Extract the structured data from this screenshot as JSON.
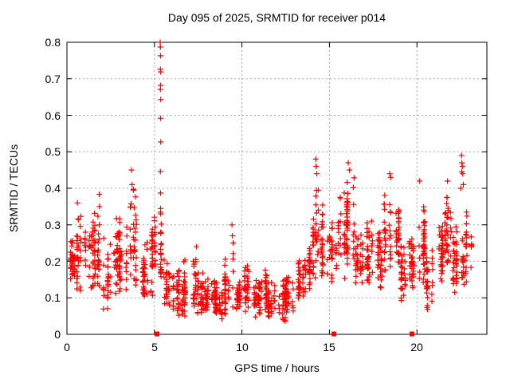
{
  "page": {
    "background": "#ffffff"
  },
  "chart_data": {
    "type": "scatter",
    "title": "Day 095 of 2025, SRMTID for receiver p014",
    "xlabel": "GPS time / hours",
    "ylabel": "SRMTID / TECUs",
    "xlim": [
      0,
      24
    ],
    "ylim": [
      0,
      0.8
    ],
    "x_ticks": [
      0,
      5,
      10,
      15,
      20
    ],
    "x_tick_labels": [
      "0",
      "5",
      "10",
      "15",
      "20"
    ],
    "y_ticks": [
      0,
      0.1,
      0.2,
      0.3,
      0.4,
      0.5,
      0.6,
      0.7,
      0.8
    ],
    "y_tick_labels": [
      "0",
      "0.1",
      "0.2",
      "0.3",
      "0.4",
      "0.5",
      "0.6",
      "0.7",
      "0.8"
    ],
    "grid": "dotted",
    "legend": "none",
    "marker": "plus",
    "marker_color": "#ff0000",
    "grid_color": "#a8a8a8",
    "border_color": "#000000",
    "seed": 42,
    "series_profile": {
      "description": "Dense burst scatter; each segment = [t_start_h, t_end_h, n_points, y_low_TECU, y_high_TECU] of the bulk band read from the plot",
      "segments": [
        [
          0.0,
          0.5,
          34,
          0.13,
          0.3
        ],
        [
          0.5,
          1.0,
          30,
          0.11,
          0.36
        ],
        [
          1.0,
          1.5,
          34,
          0.12,
          0.34
        ],
        [
          1.5,
          2.0,
          40,
          0.1,
          0.39
        ],
        [
          2.0,
          2.5,
          30,
          0.06,
          0.28
        ],
        [
          2.5,
          3.0,
          30,
          0.1,
          0.34
        ],
        [
          3.0,
          3.5,
          34,
          0.1,
          0.33
        ],
        [
          3.5,
          4.0,
          36,
          0.12,
          0.41
        ],
        [
          4.0,
          4.5,
          30,
          0.08,
          0.26
        ],
        [
          4.5,
          5.0,
          30,
          0.1,
          0.33
        ],
        [
          5.0,
          5.5,
          36,
          0.14,
          0.35
        ],
        [
          5.5,
          6.0,
          30,
          0.07,
          0.22
        ],
        [
          6.0,
          6.5,
          34,
          0.05,
          0.19
        ],
        [
          6.5,
          7.0,
          34,
          0.04,
          0.21
        ],
        [
          7.0,
          7.5,
          36,
          0.05,
          0.24
        ],
        [
          7.5,
          8.0,
          34,
          0.04,
          0.18
        ],
        [
          8.0,
          8.5,
          34,
          0.05,
          0.17
        ],
        [
          8.5,
          9.0,
          34,
          0.03,
          0.15
        ],
        [
          9.0,
          9.5,
          36,
          0.05,
          0.23
        ],
        [
          9.5,
          10.0,
          34,
          0.04,
          0.16
        ],
        [
          10.0,
          10.5,
          34,
          0.05,
          0.2
        ],
        [
          10.5,
          11.0,
          34,
          0.04,
          0.17
        ],
        [
          11.0,
          11.5,
          34,
          0.05,
          0.2
        ],
        [
          11.5,
          12.0,
          32,
          0.03,
          0.15
        ],
        [
          12.0,
          12.5,
          32,
          0.03,
          0.16
        ],
        [
          12.5,
          13.0,
          30,
          0.05,
          0.18
        ],
        [
          13.0,
          13.5,
          30,
          0.08,
          0.22
        ],
        [
          13.5,
          14.0,
          32,
          0.11,
          0.3
        ],
        [
          14.0,
          14.5,
          36,
          0.14,
          0.42
        ],
        [
          14.5,
          15.0,
          30,
          0.12,
          0.37
        ],
        [
          15.0,
          15.5,
          30,
          0.13,
          0.35
        ],
        [
          15.5,
          16.0,
          34,
          0.15,
          0.41
        ],
        [
          16.0,
          16.5,
          38,
          0.18,
          0.44
        ],
        [
          16.5,
          17.0,
          34,
          0.13,
          0.31
        ],
        [
          17.0,
          17.5,
          34,
          0.12,
          0.33
        ],
        [
          17.5,
          18.0,
          34,
          0.11,
          0.3
        ],
        [
          18.0,
          18.5,
          34,
          0.15,
          0.4
        ],
        [
          18.5,
          19.0,
          34,
          0.18,
          0.37
        ],
        [
          19.0,
          19.5,
          30,
          0.09,
          0.27
        ],
        [
          19.5,
          20.0,
          32,
          0.11,
          0.3
        ],
        [
          20.0,
          20.5,
          40,
          0.12,
          0.41
        ],
        [
          20.5,
          21.0,
          30,
          0.06,
          0.27
        ],
        [
          21.0,
          21.5,
          34,
          0.14,
          0.34
        ],
        [
          21.5,
          22.0,
          36,
          0.17,
          0.4
        ],
        [
          22.0,
          22.5,
          34,
          0.11,
          0.31
        ],
        [
          22.5,
          23.0,
          32,
          0.12,
          0.38
        ],
        [
          23.0,
          23.2,
          6,
          0.18,
          0.28
        ]
      ]
    },
    "outlier_points": [
      [
        0.6,
        0.36
      ],
      [
        3.69,
        0.45
      ],
      [
        3.72,
        0.41
      ],
      [
        5.33,
        0.8
      ],
      [
        5.34,
        0.787
      ],
      [
        5.35,
        0.763
      ],
      [
        5.34,
        0.726
      ],
      [
        5.36,
        0.719
      ],
      [
        5.35,
        0.682
      ],
      [
        5.34,
        0.671
      ],
      [
        5.36,
        0.643
      ],
      [
        5.35,
        0.592
      ],
      [
        5.36,
        0.527
      ],
      [
        5.34,
        0.446
      ],
      [
        5.35,
        0.387
      ],
      [
        7.4,
        0.24
      ],
      [
        9.43,
        0.3
      ],
      [
        9.46,
        0.27
      ],
      [
        9.5,
        0.25
      ],
      [
        14.22,
        0.48
      ],
      [
        14.24,
        0.46
      ],
      [
        14.28,
        0.44
      ],
      [
        16.08,
        0.47
      ],
      [
        16.15,
        0.45
      ],
      [
        18.45,
        0.44
      ],
      [
        18.5,
        0.43
      ],
      [
        20.15,
        0.42
      ],
      [
        21.75,
        0.42
      ],
      [
        22.5,
        0.4
      ],
      [
        22.55,
        0.49
      ],
      [
        22.56,
        0.445
      ],
      [
        22.57,
        0.47
      ],
      [
        22.6,
        0.46
      ],
      [
        22.62,
        0.44
      ],
      [
        22.65,
        0.41
      ]
    ],
    "zero_marker_hours": [
      5.15,
      15.26,
      19.72
    ]
  }
}
